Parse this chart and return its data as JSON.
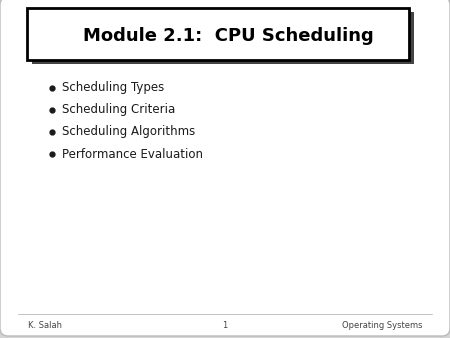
{
  "title": "Module 2.1:  CPU Scheduling",
  "bullet_points": [
    "Scheduling Types",
    "Scheduling Criteria",
    "Scheduling Algorithms",
    "Performance Evaluation"
  ],
  "footer_left": "K. Salah",
  "footer_center": "1",
  "footer_right": "Operating Systems",
  "bg_color": "#d4d4d4",
  "slide_bg": "#ffffff",
  "title_bg": "#ffffff",
  "title_color": "#000000",
  "text_color": "#1a1a1a",
  "footer_color": "#444444",
  "shadow_color": "#444444",
  "title_fontsize": 13,
  "bullet_fontsize": 8.5,
  "footer_fontsize": 6
}
